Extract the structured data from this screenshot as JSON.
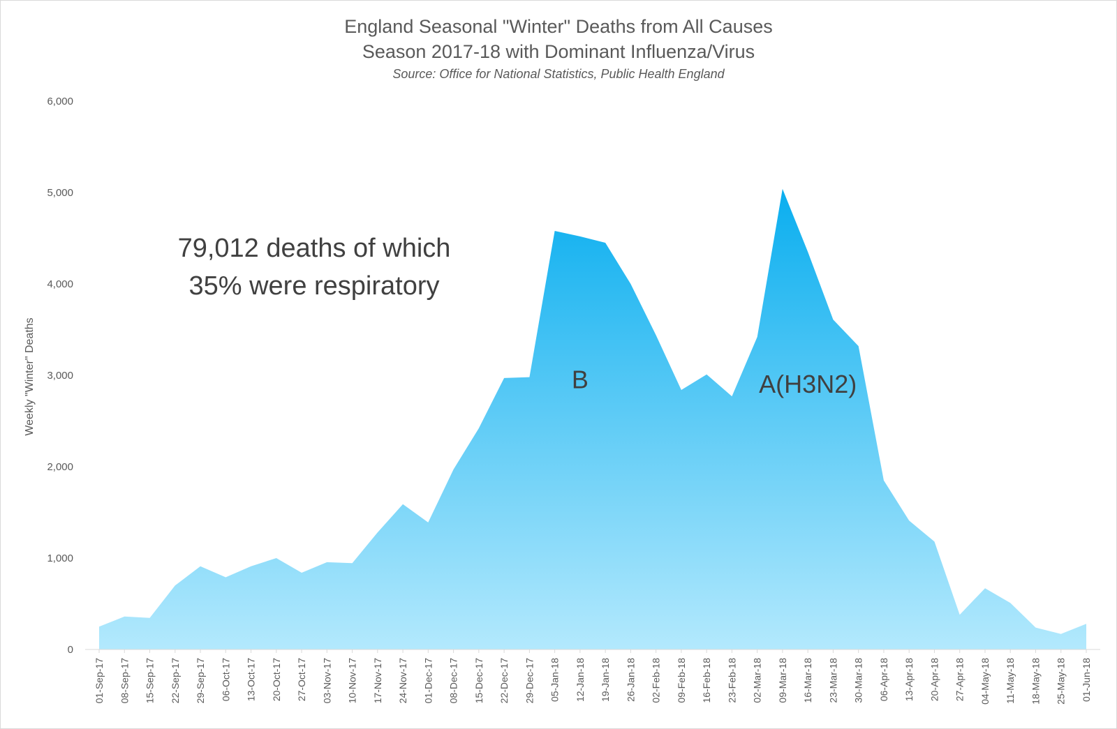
{
  "chart_data": {
    "type": "area",
    "title": "England Seasonal \"Winter\" Deaths from All Causes",
    "subtitle": "Season 2017-18 with Dominant Influenza/Virus",
    "source": "Source: Office for National Statistics, Public Health England",
    "ylabel": "Weekly \"Winter\" Deaths",
    "xlabel": "",
    "ylim": [
      0,
      6000
    ],
    "yticks": [
      "0",
      "1,000",
      "2,000",
      "3,000",
      "4,000",
      "5,000",
      "6,000"
    ],
    "grid": false,
    "legend": "none",
    "color_top": "#0aaeef",
    "color_bottom": "#b3e9fd",
    "x": [
      "01-Sep-17",
      "08-Sep-17",
      "15-Sep-17",
      "22-Sep-17",
      "29-Sep-17",
      "06-Oct-17",
      "13-Oct-17",
      "20-Oct-17",
      "27-Oct-17",
      "03-Nov-17",
      "10-Nov-17",
      "17-Nov-17",
      "24-Nov-17",
      "01-Dec-17",
      "08-Dec-17",
      "15-Dec-17",
      "22-Dec-17",
      "29-Dec-17",
      "05-Jan-18",
      "12-Jan-18",
      "19-Jan-18",
      "26-Jan-18",
      "02-Feb-18",
      "09-Feb-18",
      "16-Feb-18",
      "23-Feb-18",
      "02-Mar-18",
      "09-Mar-18",
      "16-Mar-18",
      "23-Mar-18",
      "30-Mar-18",
      "06-Apr-18",
      "13-Apr-18",
      "20-Apr-18",
      "27-Apr-18",
      "04-May-18",
      "11-May-18",
      "18-May-18",
      "25-May-18",
      "01-Jun-18"
    ],
    "values": [
      250,
      360,
      345,
      700,
      910,
      790,
      910,
      1000,
      840,
      955,
      945,
      1280,
      1590,
      1390,
      1970,
      2420,
      2970,
      2980,
      4580,
      4520,
      4450,
      4000,
      3440,
      2840,
      3010,
      2770,
      3420,
      5040,
      4350,
      3610,
      3320,
      1850,
      1410,
      1180,
      380,
      670,
      510,
      240,
      170,
      280
    ],
    "annotations": [
      {
        "text": "79,012 deaths of which",
        "text2": "35% were respiratory"
      },
      {
        "text": "B",
        "x": "12-Jan-18",
        "y": 2950
      },
      {
        "text": "A(H3N2)",
        "x": "16-Mar-18",
        "y": 2900
      }
    ]
  }
}
